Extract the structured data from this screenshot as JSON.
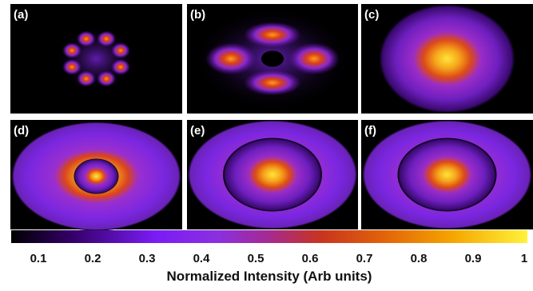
{
  "panels": [
    {
      "label": "(a)"
    },
    {
      "label": "(b)"
    },
    {
      "label": "(c)"
    },
    {
      "label": "(d)"
    },
    {
      "label": "(e)"
    },
    {
      "label": "(f)"
    }
  ],
  "colorbar": {
    "lim": [
      0.05,
      1.0
    ],
    "ticks": [
      0.1,
      0.2,
      0.3,
      0.4,
      0.5,
      0.6,
      0.7,
      0.8,
      0.9,
      1
    ],
    "label": "Normalized Intensity (Arb units)"
  }
}
